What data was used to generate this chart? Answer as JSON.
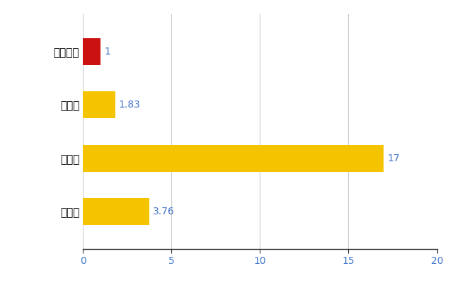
{
  "categories": [
    "飯島町",
    "県平均",
    "県最大",
    "全国平均"
  ],
  "values": [
    1,
    1.83,
    17,
    3.76
  ],
  "bar_colors": [
    "#CC1111",
    "#F5C400",
    "#F5C400",
    "#F5C400"
  ],
  "value_labels": [
    "1",
    "1.83",
    "17",
    "3.76"
  ],
  "value_label_color": "#4477CC",
  "xlim": [
    0,
    20
  ],
  "xticks": [
    0,
    5,
    10,
    15,
    20
  ],
  "xtick_color": "#4477CC",
  "background_color": "#FFFFFF",
  "grid_color": "#CCCCCC",
  "bar_height": 0.5
}
